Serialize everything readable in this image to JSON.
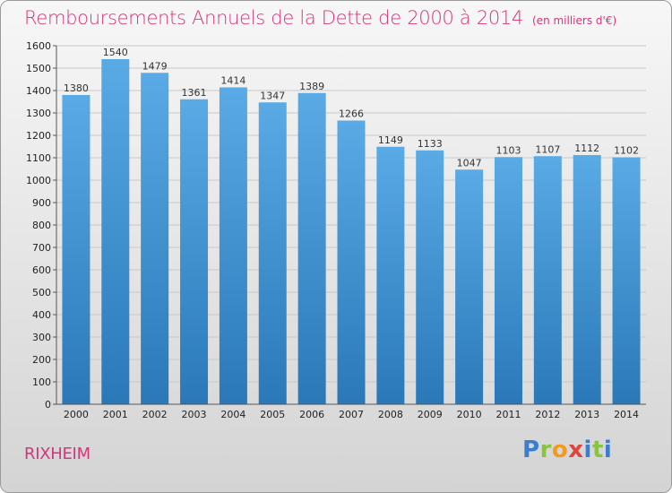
{
  "header": {
    "title": "Remboursements Annuels de la Dette de 2000 à 2014",
    "subtitle": "(en milliers d'€)"
  },
  "footer": {
    "city": "RIXHEIM",
    "brand_letters": [
      "P",
      "r",
      "o",
      "x",
      "i",
      "t",
      "i"
    ]
  },
  "colors": {
    "title": "#d4367a",
    "bar_top": "#5aaae6",
    "bar_bottom": "#2a78b8"
  },
  "chart_data": {
    "type": "bar",
    "title": "Remboursements Annuels de la Dette de 2000 à 2014",
    "subtitle": "(en milliers d'€)",
    "categories": [
      "2000",
      "2001",
      "2002",
      "2003",
      "2004",
      "2005",
      "2006",
      "2007",
      "2008",
      "2009",
      "2010",
      "2011",
      "2012",
      "2013",
      "2014"
    ],
    "values": [
      1380,
      1540,
      1479,
      1361,
      1414,
      1347,
      1389,
      1266,
      1149,
      1133,
      1047,
      1103,
      1107,
      1112,
      1102
    ],
    "xlabel": "",
    "ylabel": "",
    "ylim": [
      0,
      1600
    ],
    "yticks": [
      0,
      100,
      200,
      300,
      400,
      500,
      600,
      700,
      800,
      900,
      1000,
      1100,
      1200,
      1300,
      1400,
      1500,
      1600
    ],
    "grid": true,
    "data_labels": true
  }
}
